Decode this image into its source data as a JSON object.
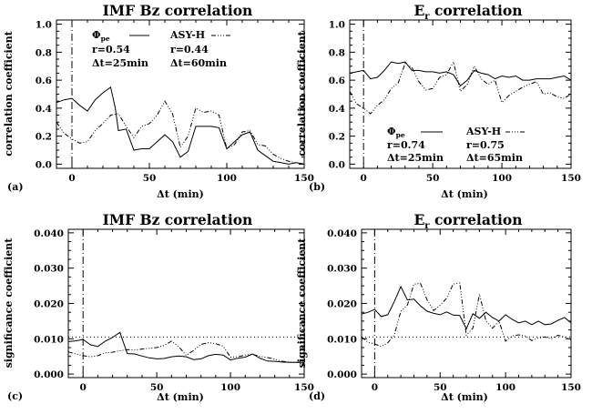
{
  "chart_data": [
    {
      "panel": "(a)",
      "type": "line",
      "title": "IMF Bz correlation",
      "xlabel": "Δt (min)",
      "ylabel": "correlation coefficient",
      "xlim": [
        -10,
        150
      ],
      "ylim": [
        -0.03,
        1.03
      ],
      "xticks": [
        "0",
        "50",
        "100",
        "150"
      ],
      "yticks": [
        "0.0",
        "0.2",
        "0.4",
        "0.6",
        "0.8",
        "1.0"
      ],
      "vline_x": 0,
      "legend": {
        "s1_name": "Φpe",
        "s1_name_base": "Φ",
        "s1_name_sub": "pe",
        "s1_r": "r=0.54",
        "s1_dt": "Δt=25min",
        "s2_name": "ASY-H",
        "s2_r": "r=0.44",
        "s2_dt": "Δt=60min"
      },
      "series": [
        {
          "name": "Φpe",
          "style": "solid",
          "x": [
            -10,
            -5,
            0,
            5,
            10,
            15,
            20,
            25,
            28,
            30,
            35,
            40,
            45,
            50,
            55,
            60,
            65,
            70,
            75,
            80,
            85,
            90,
            95,
            100,
            105,
            110,
            115,
            120,
            125,
            130,
            135,
            140,
            145,
            150
          ],
          "y": [
            0.44,
            0.46,
            0.47,
            0.42,
            0.38,
            0.46,
            0.51,
            0.55,
            0.4,
            0.24,
            0.25,
            0.1,
            0.11,
            0.11,
            0.16,
            0.21,
            0.16,
            0.05,
            0.09,
            0.27,
            0.27,
            0.27,
            0.26,
            0.11,
            0.16,
            0.21,
            0.23,
            0.1,
            0.06,
            0.02,
            0.01,
            0.0,
            0.01,
            0.0
          ]
        },
        {
          "name": "ASY-H",
          "style": "dash-dot",
          "x": [
            -10,
            -5,
            0,
            5,
            10,
            15,
            20,
            25,
            30,
            35,
            40,
            45,
            50,
            55,
            60,
            65,
            70,
            75,
            80,
            85,
            90,
            95,
            100,
            105,
            110,
            115,
            120,
            125,
            130,
            135,
            140,
            145,
            150
          ],
          "y": [
            0.3,
            0.22,
            0.18,
            0.15,
            0.16,
            0.24,
            0.29,
            0.35,
            0.36,
            0.27,
            0.19,
            0.27,
            0.29,
            0.35,
            0.45,
            0.36,
            0.12,
            0.2,
            0.4,
            0.37,
            0.38,
            0.35,
            0.11,
            0.14,
            0.23,
            0.24,
            0.14,
            0.13,
            0.07,
            0.04,
            0.02,
            0.01,
            0.0
          ]
        }
      ]
    },
    {
      "panel": "(b)",
      "type": "line",
      "title": "Er correlation",
      "title_base": "E",
      "title_sub": "r",
      "title_rest": " correlation",
      "xlabel": "Δt (min)",
      "ylabel": "correlation coefficient",
      "xlim": [
        -10,
        150
      ],
      "ylim": [
        -0.03,
        1.03
      ],
      "xticks": [
        "0",
        "50",
        "100",
        "150"
      ],
      "yticks": [
        "0.0",
        "0.2",
        "0.4",
        "0.6",
        "0.8",
        "1.0"
      ],
      "vline_x": 0,
      "legend": {
        "s1_name": "Φpe",
        "s1_name_base": "Φ",
        "s1_name_sub": "pe",
        "s1_r": "r=0.74",
        "s1_dt": "Δt=25min",
        "s2_name": "ASY-H",
        "s2_r": "r=0.75",
        "s2_dt": "Δt=65min"
      },
      "series": [
        {
          "name": "Φpe",
          "style": "solid",
          "x": [
            -10,
            -5,
            0,
            5,
            10,
            15,
            20,
            25,
            30,
            35,
            40,
            45,
            50,
            55,
            60,
            65,
            70,
            75,
            80,
            85,
            90,
            95,
            100,
            105,
            110,
            115,
            120,
            125,
            130,
            135,
            140,
            145,
            150
          ],
          "y": [
            0.65,
            0.66,
            0.67,
            0.61,
            0.62,
            0.67,
            0.73,
            0.72,
            0.73,
            0.67,
            0.67,
            0.66,
            0.66,
            0.65,
            0.66,
            0.64,
            0.56,
            0.6,
            0.67,
            0.65,
            0.64,
            0.61,
            0.63,
            0.62,
            0.63,
            0.6,
            0.6,
            0.61,
            0.61,
            0.61,
            0.62,
            0.63,
            0.6
          ]
        },
        {
          "name": "ASY-H",
          "style": "dash-dot",
          "x": [
            -10,
            -5,
            0,
            5,
            10,
            15,
            20,
            25,
            30,
            35,
            40,
            45,
            50,
            55,
            60,
            65,
            70,
            75,
            80,
            85,
            90,
            95,
            100,
            105,
            110,
            115,
            120,
            125,
            130,
            135,
            140,
            145,
            150
          ],
          "y": [
            0.52,
            0.43,
            0.4,
            0.36,
            0.42,
            0.46,
            0.54,
            0.58,
            0.72,
            0.69,
            0.59,
            0.53,
            0.54,
            0.62,
            0.64,
            0.73,
            0.52,
            0.57,
            0.7,
            0.61,
            0.57,
            0.6,
            0.44,
            0.49,
            0.52,
            0.55,
            0.57,
            0.59,
            0.5,
            0.51,
            0.48,
            0.47,
            0.5
          ]
        }
      ]
    },
    {
      "panel": "(c)",
      "type": "line",
      "title": "IMF Bz correlation",
      "xlabel": "Δt (min)",
      "ylabel": "significance coefficient",
      "xlim": [
        -10,
        150
      ],
      "ylim": [
        -0.001,
        0.041
      ],
      "xticks": [
        "0",
        "50",
        "100",
        "150"
      ],
      "yticks": [
        "0.000",
        "0.010",
        "0.020",
        "0.030",
        "0.040"
      ],
      "vline_x": 0,
      "hline_y": 0.0105,
      "series": [
        {
          "name": "Φpe",
          "style": "solid",
          "x": [
            -10,
            -5,
            0,
            5,
            10,
            15,
            20,
            25,
            30,
            35,
            40,
            45,
            50,
            55,
            60,
            65,
            70,
            75,
            80,
            85,
            90,
            95,
            100,
            105,
            110,
            115,
            120,
            125,
            130,
            135,
            140,
            145,
            150
          ],
          "y": [
            0.0092,
            0.0094,
            0.0098,
            0.0083,
            0.0078,
            0.0093,
            0.0104,
            0.0118,
            0.0058,
            0.0057,
            0.0051,
            0.0046,
            0.0043,
            0.0044,
            0.0049,
            0.0051,
            0.0049,
            0.0041,
            0.0043,
            0.0052,
            0.0056,
            0.0054,
            0.004,
            0.0045,
            0.0048,
            0.0057,
            0.0045,
            0.0037,
            0.0036,
            0.0034,
            0.0033,
            0.0033,
            0.0033
          ]
        },
        {
          "name": "ASY-H",
          "style": "dash-dot",
          "x": [
            -10,
            -5,
            0,
            5,
            10,
            15,
            20,
            25,
            30,
            35,
            40,
            45,
            50,
            55,
            60,
            65,
            70,
            75,
            80,
            85,
            90,
            95,
            100,
            105,
            110,
            115,
            120,
            125,
            130,
            135,
            140,
            145,
            150
          ],
          "y": [
            0.0063,
            0.0057,
            0.0052,
            0.0049,
            0.0052,
            0.006,
            0.0062,
            0.0066,
            0.0069,
            0.0068,
            0.0071,
            0.0073,
            0.0075,
            0.0081,
            0.0093,
            0.0077,
            0.0053,
            0.0067,
            0.0084,
            0.0089,
            0.0086,
            0.0079,
            0.0048,
            0.0049,
            0.0054,
            0.0056,
            0.005,
            0.0047,
            0.0042,
            0.0036,
            0.0034,
            0.0033,
            0.0034
          ]
        }
      ]
    },
    {
      "panel": "(d)",
      "type": "line",
      "title": "Er correlation",
      "title_base": "E",
      "title_sub": "r",
      "title_rest": " correlation",
      "xlabel": "Δt (min)",
      "ylabel": "significance coefficient",
      "xlim": [
        -10,
        150
      ],
      "ylim": [
        -0.001,
        0.041
      ],
      "xticks": [
        "0",
        "50",
        "100",
        "150"
      ],
      "yticks": [
        "0.000",
        "0.010",
        "0.020",
        "0.030",
        "0.040"
      ],
      "vline_x": 0,
      "hline_y": 0.0105,
      "series": [
        {
          "name": "Φpe",
          "style": "solid",
          "x": [
            -10,
            -5,
            0,
            5,
            10,
            15,
            20,
            25,
            30,
            35,
            40,
            45,
            50,
            55,
            60,
            65,
            70,
            75,
            80,
            85,
            90,
            95,
            100,
            105,
            110,
            115,
            120,
            125,
            130,
            135,
            140,
            145,
            150
          ],
          "y": [
            0.017,
            0.0175,
            0.0183,
            0.0163,
            0.0168,
            0.0205,
            0.0248,
            0.021,
            0.0212,
            0.0193,
            0.0178,
            0.0172,
            0.0168,
            0.0176,
            0.0167,
            0.0166,
            0.0128,
            0.0171,
            0.0158,
            0.0175,
            0.016,
            0.015,
            0.0168,
            0.0155,
            0.0145,
            0.015,
            0.014,
            0.015,
            0.014,
            0.0142,
            0.0152,
            0.016,
            0.0145
          ]
        },
        {
          "name": "ASY-H",
          "style": "dash-dot",
          "x": [
            -10,
            -5,
            0,
            5,
            10,
            15,
            20,
            25,
            30,
            35,
            40,
            45,
            50,
            55,
            60,
            65,
            70,
            75,
            80,
            85,
            90,
            95,
            100,
            105,
            110,
            115,
            120,
            125,
            130,
            135,
            140,
            145,
            150
          ],
          "y": [
            0.0105,
            0.009,
            0.0085,
            0.0078,
            0.0089,
            0.011,
            0.0178,
            0.0195,
            0.0255,
            0.0257,
            0.021,
            0.018,
            0.0195,
            0.0215,
            0.0255,
            0.0258,
            0.011,
            0.013,
            0.0226,
            0.015,
            0.013,
            0.015,
            0.0093,
            0.0108,
            0.0111,
            0.0108,
            0.0095,
            0.0102,
            0.0105,
            0.01,
            0.011,
            0.0105,
            0.0098
          ]
        }
      ]
    }
  ]
}
